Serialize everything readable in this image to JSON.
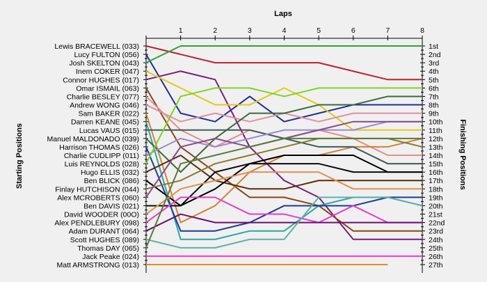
{
  "chart_data": {
    "type": "line",
    "title": "Laps",
    "ylabel_left": "Starting Positions",
    "ylabel_right": "Finishing Positions",
    "x": [
      0,
      1,
      2,
      3,
      4,
      5,
      6,
      7,
      8
    ],
    "xlim": [
      0,
      8
    ],
    "ylim": [
      1,
      27
    ],
    "y_reversed": true,
    "grid": false,
    "start_labels": [
      "Lewis BRACEWELL (033)",
      "Lucy FULTON (056)",
      "Josh SKELTON (043)",
      "Inem COKER (047)",
      "Connor HUGHES (017)",
      "Omar ISMAIL (063)",
      "Charlie BESLEY (077)",
      "Andrew WONG (046)",
      "Sam BAKER (022)",
      "Darren KEANE (045)",
      "Lucas VAUS (015)",
      "Manuel MALDONADO (039)",
      "Harrison THOMAS (026)",
      "Charlie CUDLIPP (011)",
      "Luis REYNOLDS (028)",
      "Hugo ELLIS (032)",
      "Ben BLICK (086)",
      "Finlay HUTCHISON (044)",
      "Alex MCROBERTS (060)",
      "Ben DAVIS (021)",
      "David WOODER (00O)",
      "Alex PENDLEBURY (098)",
      "Adam DURANT (064)",
      "Scott HUGHES (089)",
      "Thomas DAY (065)",
      "Jack Peake (024)",
      "Matt ARMSTRONG (013)"
    ],
    "finish_labels": [
      "1st",
      "2nd",
      "3rd",
      "4th",
      "5th",
      "6th",
      "7th",
      "8th",
      "9th",
      "10th",
      "11th",
      "12th",
      "13th",
      "14th",
      "15th",
      "16th",
      "17th",
      "18th",
      "19th",
      "20th",
      "21st",
      "22nd",
      "23rd",
      "24th",
      "25th",
      "26th",
      "27th"
    ],
    "series": [
      {
        "color": "#c0222a",
        "values": [
          1,
          2,
          3,
          3,
          3,
          3,
          4,
          5,
          5
        ]
      },
      {
        "color": "#1f2d9e",
        "values": [
          2,
          9,
          10,
          7,
          10,
          9,
          8,
          8,
          8
        ]
      },
      {
        "color": "#31a23a",
        "values": [
          3,
          1,
          1,
          1,
          1,
          1,
          1,
          1,
          1
        ]
      },
      {
        "color": "#7a1b7d",
        "values": [
          5,
          4,
          5,
          13,
          17,
          19,
          24,
          24,
          24
        ]
      },
      {
        "color": "#e6c81a",
        "values": [
          4,
          6,
          8,
          8,
          6,
          8,
          11,
          11,
          11
        ]
      },
      {
        "color": "#8b4513",
        "values": [
          6,
          13,
          16,
          19,
          19,
          20,
          23,
          23,
          23
        ]
      },
      {
        "color": "#e88b8b",
        "values": [
          7,
          11,
          13,
          11,
          12,
          11,
          12,
          14,
          14
        ]
      },
      {
        "color": "#e090a0",
        "values": [
          8,
          10,
          9,
          10,
          9,
          10,
          9,
          9,
          9
        ]
      },
      {
        "color": "#d88030",
        "values": [
          9,
          22,
          20,
          16,
          14,
          14,
          13,
          13,
          12
        ]
      },
      {
        "color": "#2aa6a6",
        "values": [
          10,
          24,
          24,
          23,
          23,
          20,
          19,
          19,
          20
        ]
      },
      {
        "color": "#3c5a5a",
        "values": [
          11,
          11,
          11,
          11,
          12,
          13,
          13,
          15,
          15
        ]
      },
      {
        "color": "#3a6a3a",
        "values": [
          12,
          16,
          12,
          9,
          9,
          8,
          8,
          7,
          7
        ]
      },
      {
        "color": "#1a3a9e",
        "values": [
          13,
          23,
          23,
          22,
          20,
          20,
          20,
          19,
          19
        ]
      },
      {
        "color": "#9a8ad0",
        "values": [
          14,
          12,
          13,
          12,
          11,
          11,
          11,
          10,
          10
        ]
      },
      {
        "color": "#7cd424",
        "values": [
          15,
          7,
          6,
          6,
          7,
          6,
          6,
          6,
          6
        ]
      },
      {
        "color": "#5c2a08",
        "values": [
          16,
          14,
          17,
          18,
          18,
          17,
          17,
          17,
          17
        ]
      },
      {
        "color": "#000000",
        "values": [
          17,
          20,
          18,
          15,
          14,
          14,
          14,
          16,
          16
        ]
      },
      {
        "color": "#8b7a2a",
        "values": [
          18,
          17,
          15,
          14,
          13,
          12,
          12,
          12,
          13
        ]
      },
      {
        "color": "#8a4a8a",
        "values": [
          19,
          13,
          12,
          13,
          12,
          11,
          10,
          10,
          10
        ]
      },
      {
        "color": "#0a0a0a",
        "values": [
          20,
          20,
          16,
          15,
          15,
          15,
          16,
          16,
          16
        ]
      },
      {
        "color": "#e09050",
        "values": [
          21,
          18,
          17,
          16,
          16,
          16,
          18,
          18,
          18
        ]
      },
      {
        "color": "#e83ccf",
        "values": [
          22,
          19,
          19,
          21,
          21,
          22,
          20,
          22,
          22
        ]
      },
      {
        "color": "#6a1070",
        "values": [
          23,
          21,
          22,
          22,
          22,
          22,
          22,
          22,
          22
        ]
      },
      {
        "color": "#60b0a8",
        "values": [
          24,
          25,
          25,
          24,
          24,
          19,
          19,
          19,
          20
        ]
      },
      {
        "color": "#5a7a3a",
        "values": [
          25,
          15,
          14,
          13,
          12,
          12,
          12,
          12,
          12
        ]
      },
      {
        "color": "#ff38c8",
        "values": [
          26,
          26,
          26,
          26,
          26,
          26,
          26,
          26,
          26
        ]
      },
      {
        "color": "#e38b28",
        "values": [
          27,
          27,
          27,
          27,
          27,
          27,
          27,
          27,
          null
        ]
      }
    ]
  }
}
